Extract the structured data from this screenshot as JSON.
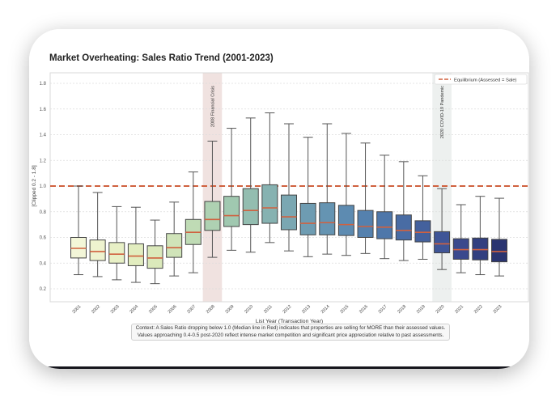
{
  "chart_data": {
    "type": "box",
    "title": "Market Overheating: Sales Ratio Trend (2001-2023)",
    "xlabel": "List Year (Transaction Year)",
    "ylabel": "[Clipped 0.2 - 1.8]",
    "ylim": [
      0.1,
      1.88
    ],
    "yticks": [
      "0.2",
      "0.4",
      "0.6",
      "0.8",
      "1.0",
      "1.2",
      "1.4",
      "1.6",
      "1.8"
    ],
    "grid": true,
    "legend": {
      "position": "top-right",
      "entries": [
        "Equilibrium (Assessed = Sale)"
      ]
    },
    "reference_line": {
      "y": 1.0,
      "label": "Equilibrium (Assessed = Sale)",
      "color": "#d0613f",
      "style": "dashed"
    },
    "shaded_regions": [
      {
        "category": "2008",
        "label": "2008 Financial Crisis",
        "color": "#f0e2e0"
      },
      {
        "category": "2020",
        "label": "2020 COVID-19 Pandemic",
        "color": "#edf0ef"
      }
    ],
    "median_color": "#d0613f",
    "categories": [
      "2001",
      "2002",
      "2003",
      "2004",
      "2005",
      "2006",
      "2007",
      "2008",
      "2009",
      "2010",
      "2011",
      "2012",
      "2013",
      "2014",
      "2015",
      "2016",
      "2017",
      "2018",
      "2019",
      "2020",
      "2021",
      "2022",
      "2023"
    ],
    "boxes": [
      {
        "whislo": 0.31,
        "q1": 0.44,
        "med": 0.515,
        "q3": 0.6,
        "whishi": 1.0,
        "color": "#f3f6d8"
      },
      {
        "whislo": 0.295,
        "q1": 0.42,
        "med": 0.49,
        "q3": 0.58,
        "whishi": 0.95,
        "color": "#eef3cf"
      },
      {
        "whislo": 0.27,
        "q1": 0.4,
        "med": 0.47,
        "q3": 0.56,
        "whishi": 0.84,
        "color": "#e8f0c6"
      },
      {
        "whislo": 0.25,
        "q1": 0.38,
        "med": 0.455,
        "q3": 0.55,
        "whishi": 0.835,
        "color": "#e2edbf"
      },
      {
        "whislo": 0.24,
        "q1": 0.36,
        "med": 0.44,
        "q3": 0.535,
        "whishi": 0.735,
        "color": "#dbe9bb"
      },
      {
        "whislo": 0.3,
        "q1": 0.445,
        "med": 0.52,
        "q3": 0.63,
        "whishi": 0.875,
        "color": "#d0e4b9"
      },
      {
        "whislo": 0.325,
        "q1": 0.545,
        "med": 0.64,
        "q3": 0.74,
        "whishi": 1.11,
        "color": "#bfdbb5"
      },
      {
        "whislo": 0.445,
        "q1": 0.655,
        "med": 0.74,
        "q3": 0.88,
        "whishi": 1.35,
        "color": "#aed1b2"
      },
      {
        "whislo": 0.5,
        "q1": 0.685,
        "med": 0.77,
        "q3": 0.92,
        "whishi": 1.45,
        "color": "#a0c8b0"
      },
      {
        "whislo": 0.485,
        "q1": 0.7,
        "med": 0.81,
        "q3": 0.98,
        "whishi": 1.53,
        "color": "#93bdb0"
      },
      {
        "whislo": 0.56,
        "q1": 0.71,
        "med": 0.83,
        "q3": 1.01,
        "whishi": 1.57,
        "color": "#86b2b1"
      },
      {
        "whislo": 0.495,
        "q1": 0.66,
        "med": 0.76,
        "q3": 0.93,
        "whishi": 1.485,
        "color": "#7aa7b2"
      },
      {
        "whislo": 0.45,
        "q1": 0.62,
        "med": 0.71,
        "q3": 0.865,
        "whishi": 1.38,
        "color": "#6e9cb2"
      },
      {
        "whislo": 0.47,
        "q1": 0.62,
        "med": 0.715,
        "q3": 0.87,
        "whishi": 1.485,
        "color": "#6594b2"
      },
      {
        "whislo": 0.46,
        "q1": 0.615,
        "med": 0.7,
        "q3": 0.85,
        "whishi": 1.41,
        "color": "#5d8bb1"
      },
      {
        "whislo": 0.475,
        "q1": 0.6,
        "med": 0.685,
        "q3": 0.81,
        "whishi": 1.335,
        "color": "#5581ae"
      },
      {
        "whislo": 0.435,
        "q1": 0.59,
        "med": 0.68,
        "q3": 0.8,
        "whishi": 1.24,
        "color": "#4e77aa"
      },
      {
        "whislo": 0.42,
        "q1": 0.58,
        "med": 0.655,
        "q3": 0.775,
        "whishi": 1.19,
        "color": "#496ca4"
      },
      {
        "whislo": 0.43,
        "q1": 0.565,
        "med": 0.64,
        "q3": 0.73,
        "whishi": 1.08,
        "color": "#44619d"
      },
      {
        "whislo": 0.35,
        "q1": 0.48,
        "med": 0.55,
        "q3": 0.645,
        "whishi": 0.98,
        "color": "#3f5597"
      },
      {
        "whislo": 0.325,
        "q1": 0.43,
        "med": 0.505,
        "q3": 0.59,
        "whishi": 0.855,
        "color": "#3a498d"
      },
      {
        "whislo": 0.31,
        "q1": 0.425,
        "med": 0.505,
        "q3": 0.595,
        "whishi": 0.92,
        "color": "#323f80"
      },
      {
        "whislo": 0.3,
        "q1": 0.41,
        "med": 0.49,
        "q3": 0.585,
        "whishi": 0.905,
        "color": "#2a3470"
      }
    ],
    "annotation": [
      "Context: A Sales Ratio dropping below 1.0 (Median line in Red) indicates that properties are selling for MORE than their assessed values.",
      "Values approaching 0.4-0.5 post-2020 reflect intense market competition and significant price appreciation relative to past assessments."
    ]
  }
}
